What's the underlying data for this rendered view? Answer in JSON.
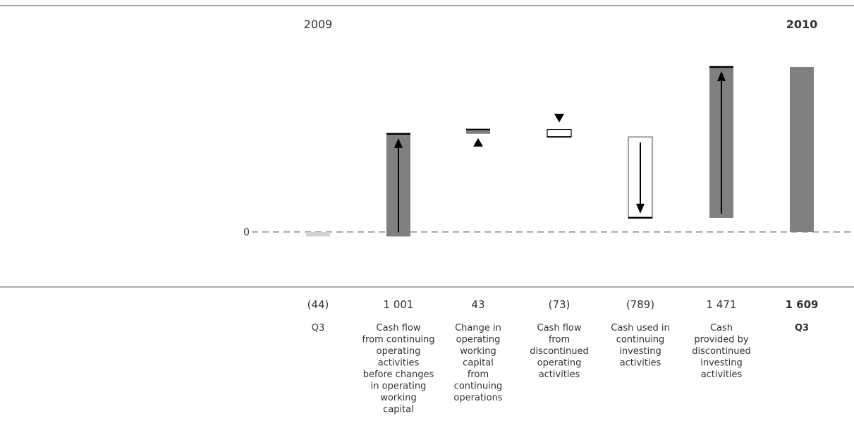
{
  "chart_data": {
    "type": "waterfall",
    "year_left": "2009",
    "year_right": "2010",
    "zero_label": "0",
    "steps": [
      {
        "value": -44,
        "value_label": "(44)",
        "category": [
          "Q3"
        ],
        "kind": "total",
        "bold": false
      },
      {
        "value": 1001,
        "value_label": "1 001",
        "category": [
          "Cash flow",
          "from continuing",
          "operating",
          "activities",
          "before changes",
          "in operating",
          "working",
          "capital"
        ],
        "kind": "increase",
        "bold": false
      },
      {
        "value": 43,
        "value_label": "43",
        "category": [
          "Change in",
          "operating",
          "working",
          "capital",
          "from",
          "continuing",
          "operations"
        ],
        "kind": "increase",
        "bold": false
      },
      {
        "value": -73,
        "value_label": "(73)",
        "category": [
          "Cash flow",
          "from",
          "discontinued",
          "operating",
          "activities"
        ],
        "kind": "decrease",
        "bold": false
      },
      {
        "value": -789,
        "value_label": "(789)",
        "category": [
          "Cash used in",
          "continuing",
          "investing",
          "activities"
        ],
        "kind": "decrease",
        "bold": false
      },
      {
        "value": 1471,
        "value_label": "1 471",
        "category": [
          "Cash",
          "provided by",
          "discontinued",
          "investing",
          "activities"
        ],
        "kind": "increase",
        "bold": false
      },
      {
        "value": 1609,
        "value_label": "1 609",
        "category": [
          "Q3"
        ],
        "kind": "total",
        "bold": true
      }
    ],
    "colors": {
      "bar": "#808080",
      "small_bar": "#d0d0d0",
      "edge": "#000000",
      "rule": "#555555"
    }
  }
}
